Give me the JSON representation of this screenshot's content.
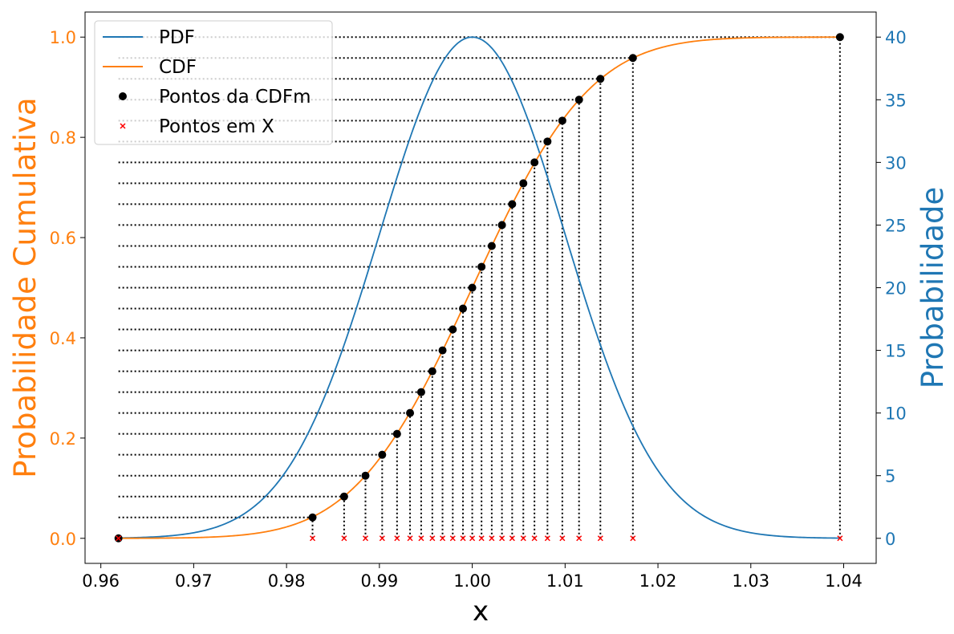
{
  "chart_data": {
    "type": "line",
    "xlabel": "x",
    "ylabel_left": "Probabilidade Cumulativa",
    "ylabel_right": "Probabilidade",
    "xlim": [
      0.9583,
      1.0435
    ],
    "ylim_left": [
      -0.05,
      1.05
    ],
    "ylim_right": [
      -2.0,
      42.0
    ],
    "x_ticks": [
      0.96,
      0.97,
      0.98,
      0.99,
      1.0,
      1.01,
      1.02,
      1.03,
      1.04
    ],
    "x_tick_labels": [
      "0.96",
      "0.97",
      "0.98",
      "0.99",
      "1.00",
      "1.01",
      "1.02",
      "1.03",
      "1.04"
    ],
    "y_left_ticks": [
      0.0,
      0.2,
      0.4,
      0.6,
      0.8,
      1.0
    ],
    "y_left_tick_labels": [
      "0.0",
      "0.2",
      "0.4",
      "0.6",
      "0.8",
      "1.0"
    ],
    "y_right_ticks": [
      0,
      5,
      10,
      15,
      20,
      25,
      30,
      35,
      40
    ],
    "y_right_tick_labels": [
      "0",
      "5",
      "10",
      "15",
      "20",
      "25",
      "30",
      "35",
      "40"
    ],
    "grid": false,
    "legend_position": "top-left",
    "colors": {
      "pdf": "#1f77b4",
      "cdf": "#ff7f0e",
      "points": "#000000",
      "x_marks": "#ff0000",
      "left_axis": "#ff7f0e",
      "right_axis": "#1f77b4"
    },
    "pdf_params": {
      "mean": 1.0,
      "std": 0.01,
      "peak": 40
    },
    "series": [
      {
        "name": "PDF",
        "kind": "line",
        "axis": "right"
      },
      {
        "name": "CDF",
        "kind": "line",
        "axis": "left"
      },
      {
        "name": "Pontos da CDFm",
        "kind": "markers",
        "axis": "left",
        "points": [
          [
            0.9619,
            0.0
          ],
          [
            0.9828,
            0.0417
          ],
          [
            0.9862,
            0.0833
          ],
          [
            0.9885,
            0.125
          ],
          [
            0.9903,
            0.1667
          ],
          [
            0.9919,
            0.2083
          ],
          [
            0.9933,
            0.25
          ],
          [
            0.9945,
            0.2917
          ],
          [
            0.9957,
            0.3333
          ],
          [
            0.9968,
            0.375
          ],
          [
            0.9979,
            0.4167
          ],
          [
            0.999,
            0.4583
          ],
          [
            1.0,
            0.5
          ],
          [
            1.001,
            0.5417
          ],
          [
            1.0021,
            0.5833
          ],
          [
            1.0032,
            0.625
          ],
          [
            1.0043,
            0.6667
          ],
          [
            1.0055,
            0.7083
          ],
          [
            1.0067,
            0.75
          ],
          [
            1.0081,
            0.7917
          ],
          [
            1.0097,
            0.8333
          ],
          [
            1.0115,
            0.875
          ],
          [
            1.0138,
            0.9167
          ],
          [
            1.0173,
            0.9583
          ],
          [
            1.0396,
            1.0
          ]
        ]
      },
      {
        "name": "Pontos em X",
        "kind": "markers",
        "axis": "left",
        "x": [
          0.9619,
          0.9828,
          0.9862,
          0.9885,
          0.9903,
          0.9919,
          0.9933,
          0.9945,
          0.9957,
          0.9968,
          0.9979,
          0.999,
          1.0,
          1.001,
          1.0021,
          1.0032,
          1.0043,
          1.0055,
          1.0067,
          1.0081,
          1.0097,
          1.0115,
          1.0138,
          1.0173,
          1.0396
        ],
        "y": 0.0
      }
    ]
  }
}
